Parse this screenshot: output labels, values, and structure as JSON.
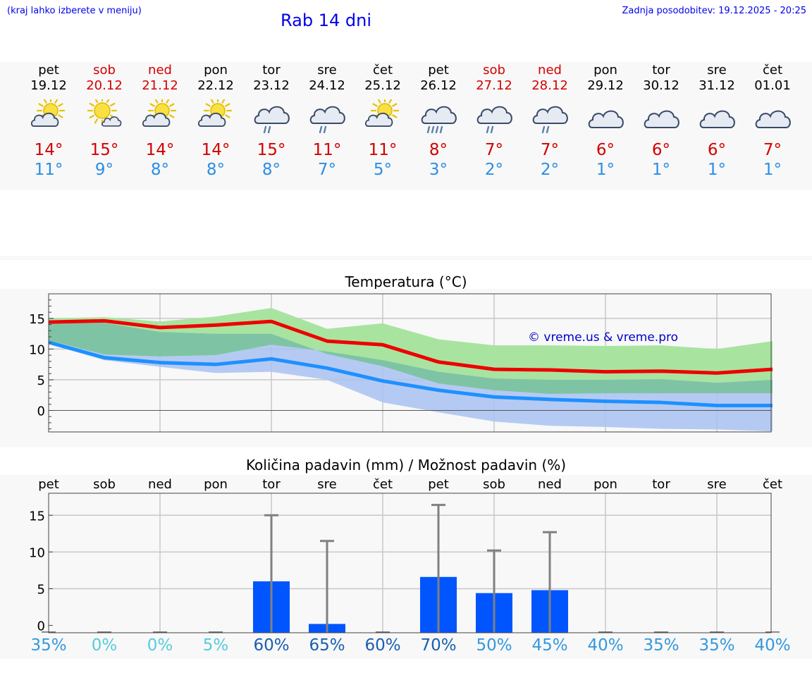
{
  "header": {
    "hint": "(kraj lahko izberete v meniju)",
    "title": "Rab 14 dni",
    "updated": "Zadnja posodobitev: 19.12.2025 - 20:25"
  },
  "days": [
    {
      "name": "pet",
      "date": "19.12",
      "weekend": false,
      "icon": "partly-sunny-icon",
      "tmax": "14°",
      "tmin": "11°"
    },
    {
      "name": "sob",
      "date": "20.12",
      "weekend": true,
      "icon": "sun-small-cloud-icon",
      "tmax": "15°",
      "tmin": "9°"
    },
    {
      "name": "ned",
      "date": "21.12",
      "weekend": true,
      "icon": "partly-sunny-icon",
      "tmax": "14°",
      "tmin": "8°"
    },
    {
      "name": "pon",
      "date": "22.12",
      "weekend": false,
      "icon": "partly-sunny-icon",
      "tmax": "14°",
      "tmin": "8°"
    },
    {
      "name": "tor",
      "date": "23.12",
      "weekend": false,
      "icon": "cloud-rain-icon",
      "tmax": "15°",
      "tmin": "8°"
    },
    {
      "name": "sre",
      "date": "24.12",
      "weekend": false,
      "icon": "cloud-rain-icon",
      "tmax": "11°",
      "tmin": "7°"
    },
    {
      "name": "čet",
      "date": "25.12",
      "weekend": false,
      "icon": "partly-sunny-icon",
      "tmax": "11°",
      "tmin": "5°"
    },
    {
      "name": "pet",
      "date": "26.12",
      "weekend": false,
      "icon": "cloud-heavy-rain-icon",
      "tmax": "8°",
      "tmin": "3°"
    },
    {
      "name": "sob",
      "date": "27.12",
      "weekend": true,
      "icon": "cloud-rain-icon",
      "tmax": "7°",
      "tmin": "2°"
    },
    {
      "name": "ned",
      "date": "28.12",
      "weekend": true,
      "icon": "cloud-rain-icon",
      "tmax": "7°",
      "tmin": "2°"
    },
    {
      "name": "pon",
      "date": "29.12",
      "weekend": false,
      "icon": "cloud-icon",
      "tmax": "6°",
      "tmin": "1°"
    },
    {
      "name": "tor",
      "date": "30.12",
      "weekend": false,
      "icon": "cloud-icon",
      "tmax": "6°",
      "tmin": "1°"
    },
    {
      "name": "sre",
      "date": "31.12",
      "weekend": false,
      "icon": "cloud-icon",
      "tmax": "6°",
      "tmin": "1°"
    },
    {
      "name": "čet",
      "date": "01.01",
      "weekend": false,
      "icon": "cloud-icon",
      "tmax": "7°",
      "tmin": "1°"
    }
  ],
  "colors": {
    "max_line": "#ee0000",
    "max_band": "#a8e4a0",
    "min_line": "#1e90ff",
    "min_band": "#a9c2f2",
    "overlap_band": "#7ec4a4",
    "bar": "#0055ff",
    "whisker": "#808080"
  },
  "chart_data": [
    {
      "type": "line",
      "title": "Temperatura (°C)",
      "watermark": "© vreme.us & vreme.pro",
      "ylim": [
        -3.5,
        19
      ],
      "yticks": [
        0,
        5,
        10,
        15
      ],
      "x": [
        0,
        1,
        2,
        3,
        4,
        5,
        6,
        7,
        8,
        9,
        10,
        11,
        12,
        13
      ],
      "series": [
        {
          "name": "max",
          "values": [
            14.4,
            14.6,
            13.5,
            13.9,
            14.5,
            11.3,
            10.7,
            7.9,
            6.7,
            6.6,
            6.3,
            6.4,
            6.1,
            6.7
          ],
          "band_low": [
            14.2,
            14.3,
            12.8,
            12.5,
            12.5,
            9.2,
            7.2,
            4.4,
            3.3,
            2.7,
            2.8,
            2.8,
            2.8,
            2.8
          ],
          "band_high": [
            15.0,
            15.2,
            14.5,
            15.3,
            16.7,
            13.3,
            14.2,
            11.6,
            10.6,
            10.6,
            10.5,
            10.6,
            10.0,
            11.3
          ]
        },
        {
          "name": "min",
          "values": [
            11.1,
            8.6,
            7.8,
            7.5,
            8.4,
            6.9,
            4.8,
            3.3,
            2.2,
            1.8,
            1.5,
            1.3,
            0.8,
            0.8
          ],
          "band_low": [
            10.8,
            8.2,
            7.1,
            6.1,
            6.3,
            5.0,
            1.3,
            -0.3,
            -1.8,
            -2.5,
            -2.7,
            -3.0,
            -3.1,
            -3.4
          ],
          "band_high": [
            11.4,
            9.1,
            8.8,
            9.0,
            10.7,
            9.6,
            8.2,
            6.3,
            5.2,
            5.0,
            5.0,
            5.1,
            4.5,
            5.0
          ]
        }
      ]
    },
    {
      "type": "bar",
      "title": "Količina padavin (mm) / Možnost padavin (%)",
      "ylim": [
        -1,
        18
      ],
      "yticks": [
        0,
        5,
        10,
        15
      ],
      "categories": [
        "pet",
        "sob",
        "ned",
        "pon",
        "tor",
        "sre",
        "čet",
        "pet",
        "sob",
        "ned",
        "pon",
        "tor",
        "sre",
        "čet"
      ],
      "values": [
        0,
        0,
        0,
        0,
        6.0,
        0.2,
        0,
        6.6,
        4.4,
        4.8,
        0,
        0,
        0,
        0
      ],
      "whisker_max": [
        0,
        0,
        0,
        0,
        15.0,
        11.5,
        0,
        16.4,
        10.2,
        12.7,
        0,
        0,
        0,
        0
      ],
      "probability": [
        "35%",
        "0%",
        "0%",
        "5%",
        "60%",
        "65%",
        "60%",
        "70%",
        "50%",
        "45%",
        "40%",
        "35%",
        "35%",
        "40%"
      ],
      "probability_color": [
        "#3399dd",
        "#55ccdd",
        "#55ccdd",
        "#55ccdd",
        "#1a5eb0",
        "#1a5eb0",
        "#1a5eb0",
        "#1a5eb0",
        "#3399dd",
        "#3399dd",
        "#3399dd",
        "#3399dd",
        "#3399dd",
        "#3399dd"
      ]
    }
  ]
}
